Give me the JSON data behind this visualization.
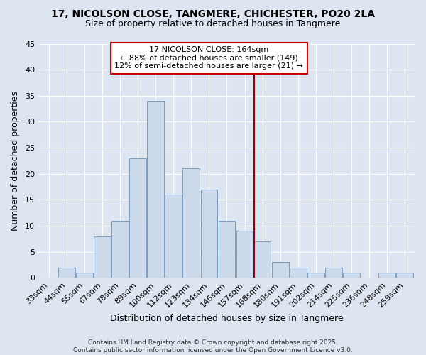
{
  "title_line1": "17, NICOLSON CLOSE, TANGMERE, CHICHESTER, PO20 2LA",
  "title_line2": "Size of property relative to detached houses in Tangmere",
  "xlabel": "Distribution of detached houses by size in Tangmere",
  "ylabel": "Number of detached properties",
  "bar_labels": [
    "33sqm",
    "44sqm",
    "55sqm",
    "67sqm",
    "78sqm",
    "89sqm",
    "100sqm",
    "112sqm",
    "123sqm",
    "134sqm",
    "146sqm",
    "157sqm",
    "168sqm",
    "180sqm",
    "191sqm",
    "202sqm",
    "214sqm",
    "225sqm",
    "236sqm",
    "248sqm",
    "259sqm"
  ],
  "bar_heights": [
    0,
    2,
    1,
    8,
    11,
    23,
    34,
    16,
    21,
    17,
    11,
    9,
    7,
    3,
    2,
    1,
    2,
    1,
    0,
    1,
    1
  ],
  "bar_color": "#ccdaeb",
  "bar_edge_color": "#7a9dc0",
  "vline_x_index": 12,
  "vline_color": "#990000",
  "annotation_text": "17 NICOLSON CLOSE: 164sqm\n← 88% of detached houses are smaller (149)\n12% of semi-detached houses are larger (21) →",
  "annotation_box_color": "#ffffff",
  "annotation_box_edge_color": "#cc0000",
  "ylim": [
    0,
    45
  ],
  "yticks": [
    0,
    5,
    10,
    15,
    20,
    25,
    30,
    35,
    40,
    45
  ],
  "bg_color": "#dde6f0",
  "grid_color": "#ffffff",
  "title_fontsize": 10,
  "subtitle_fontsize": 9,
  "label_fontsize": 9,
  "tick_fontsize": 8,
  "annot_fontsize": 8,
  "footer_text": "Contains HM Land Registry data © Crown copyright and database right 2025.\nContains public sector information licensed under the Open Government Licence v3.0."
}
